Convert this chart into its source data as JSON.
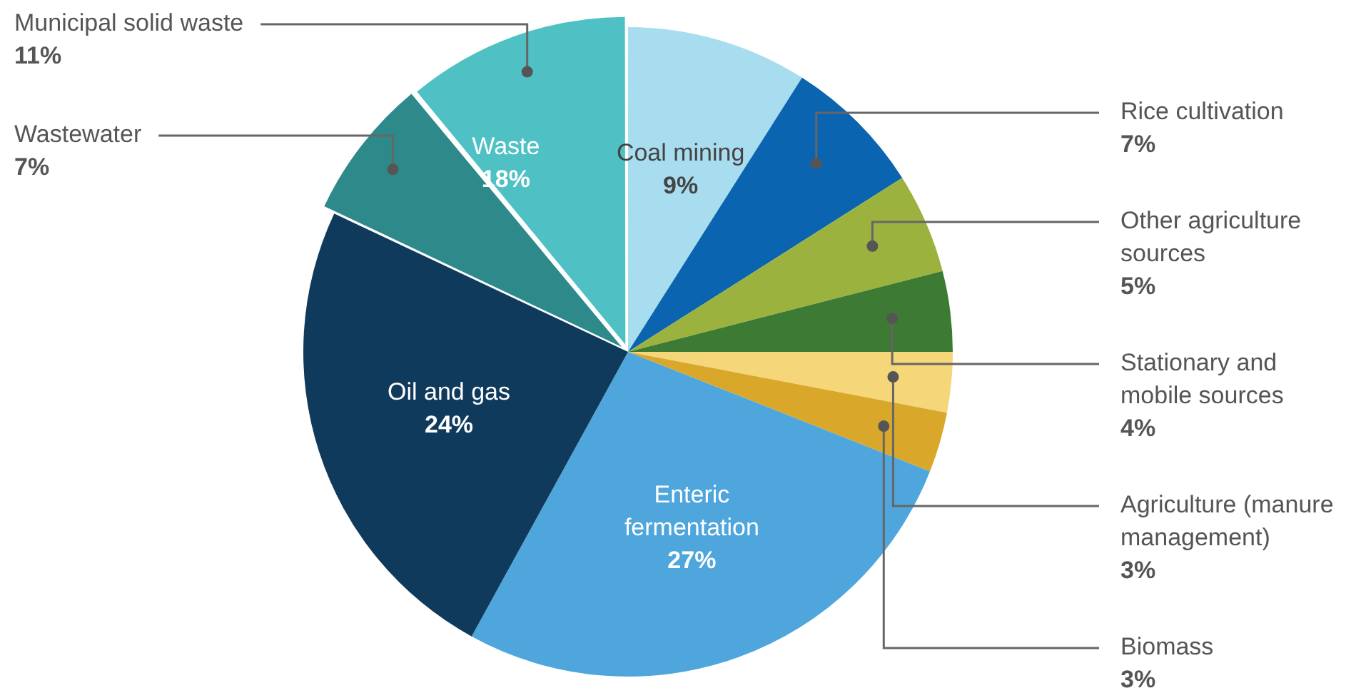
{
  "chart_data": {
    "type": "pie",
    "categories": [
      "Coal mining",
      "Rice cultivation",
      "Other agriculture sources",
      "Stationary and mobile sources",
      "Agriculture (manure management)",
      "Biomass",
      "Enteric fermentation",
      "Oil and gas",
      "Wastewater",
      "Municipal solid waste"
    ],
    "values": [
      9,
      7,
      5,
      4,
      3,
      3,
      27,
      24,
      7,
      11
    ],
    "value_labels": [
      "9%",
      "7%",
      "5%",
      "4%",
      "3%",
      "3%",
      "27%",
      "24%",
      "7%",
      "11%"
    ],
    "colors": [
      "#a8dcef",
      "#0a64b0",
      "#9bb33e",
      "#3d7a34",
      "#f5d77a",
      "#d9a82a",
      "#4ea6dc",
      "#103a5c",
      "#2e8a8a",
      "#4fc1c4"
    ],
    "annotations": [
      "Waste 18%"
    ],
    "legend": false
  }
}
